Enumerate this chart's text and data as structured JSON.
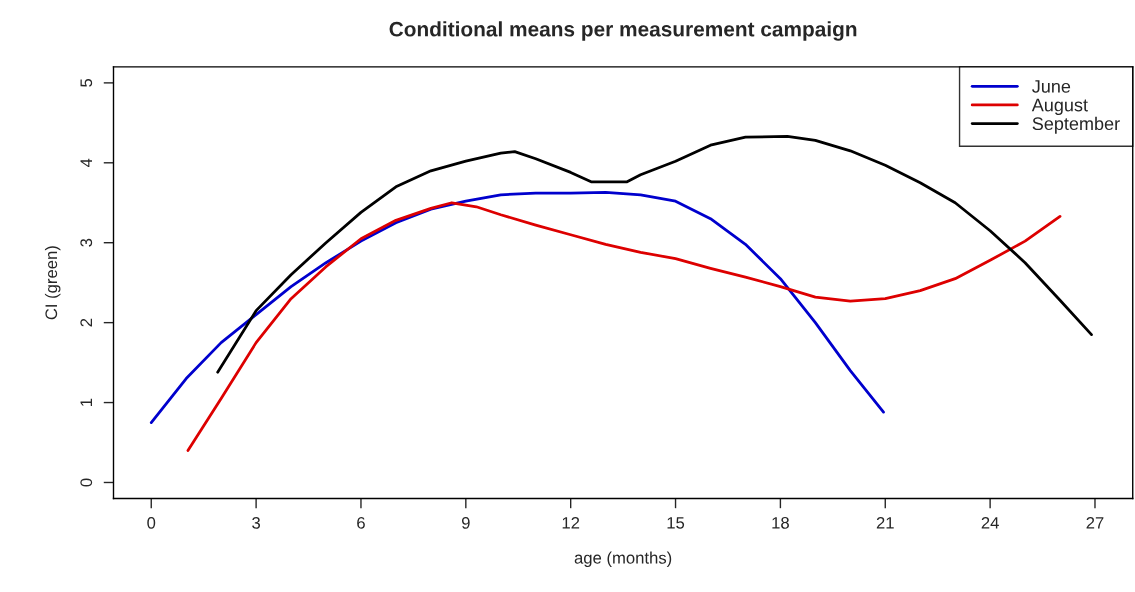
{
  "chart_data": {
    "type": "line",
    "title": "Conditional means per measurement campaign",
    "xlabel": "age (months)",
    "ylabel": "CI (green)",
    "xlim": [
      -1.08,
      28.08
    ],
    "ylim": [
      -0.2,
      5.2
    ],
    "xticks": [
      0,
      3,
      6,
      9,
      12,
      15,
      18,
      21,
      24,
      27
    ],
    "yticks": [
      0,
      1,
      2,
      3,
      4,
      5
    ],
    "grid": false,
    "legend": "top right",
    "line_style": "solid",
    "marker": "none",
    "series": [
      {
        "name": "June",
        "color": "#0000cd",
        "x": [
          0,
          1,
          2,
          3,
          4,
          5,
          6,
          7,
          8,
          9,
          10,
          11,
          12,
          13,
          14,
          15,
          16,
          17,
          18,
          19,
          20,
          20.95
        ],
        "values": [
          0.75,
          1.3,
          1.75,
          2.1,
          2.45,
          2.75,
          3.02,
          3.25,
          3.42,
          3.52,
          3.6,
          3.62,
          3.62,
          3.63,
          3.6,
          3.52,
          3.3,
          2.98,
          2.55,
          2.0,
          1.4,
          0.88
        ]
      },
      {
        "name": "August",
        "color": "#dd0000",
        "x": [
          1.05,
          2,
          3,
          4,
          5,
          6,
          7,
          8,
          8.6,
          9.3,
          10,
          11,
          12,
          13,
          14,
          15,
          16,
          17,
          18,
          19,
          20,
          21,
          22,
          23,
          24,
          25,
          26
        ],
        "values": [
          0.4,
          1.05,
          1.75,
          2.3,
          2.7,
          3.05,
          3.28,
          3.43,
          3.5,
          3.45,
          3.35,
          3.22,
          3.1,
          2.98,
          2.88,
          2.8,
          2.68,
          2.57,
          2.45,
          2.32,
          2.27,
          2.3,
          2.4,
          2.55,
          2.78,
          3.02,
          3.33
        ]
      },
      {
        "name": "September",
        "color": "#000000",
        "x": [
          1.9,
          3,
          4,
          5,
          6,
          7,
          8,
          9,
          10,
          10.4,
          11,
          12,
          12.6,
          13.6,
          14,
          15,
          16,
          17,
          18.2,
          19,
          20,
          21,
          22,
          23,
          24,
          25,
          26,
          26.9
        ],
        "values": [
          1.38,
          2.15,
          2.6,
          3.0,
          3.38,
          3.7,
          3.9,
          4.02,
          4.12,
          4.14,
          4.05,
          3.88,
          3.76,
          3.76,
          3.85,
          4.02,
          4.22,
          4.32,
          4.33,
          4.28,
          4.15,
          3.97,
          3.75,
          3.5,
          3.15,
          2.75,
          2.28,
          1.85
        ]
      }
    ]
  }
}
